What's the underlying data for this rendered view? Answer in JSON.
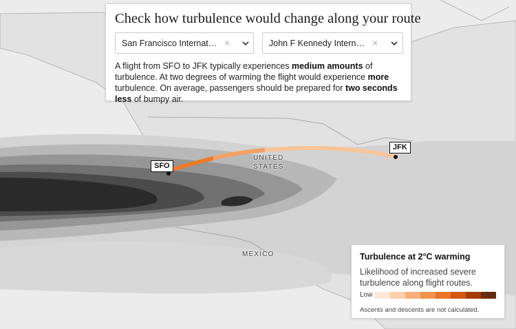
{
  "panel": {
    "title": "Check how turbulence would change along your route",
    "origin": {
      "value": "San Francisco Internat…"
    },
    "destination": {
      "value": "John F Kennedy Intern…"
    },
    "description": {
      "p1": "A flight from SFO to JFK typically experiences ",
      "b1": "medium amounts",
      "p2": " of turbulence. At two degrees of warming the flight would experience ",
      "b2": "more",
      "p3": " turbulence. On average, passengers should be prepared for ",
      "b3": "two seconds less",
      "p4": " of bumpy air."
    }
  },
  "icons": {
    "clear": "×",
    "dropdown": "chevron-down-icon"
  },
  "map": {
    "route": {
      "origin_code": "SFO",
      "destination_code": "JFK"
    },
    "labels": {
      "country_1": "UNITED",
      "country_1b": "STATES",
      "country_2": "MEXICO"
    }
  },
  "legend": {
    "title": "Turbulence at 2°C warming",
    "subtitle": "Likelihood of increased severe turbulence along flight routes.",
    "low": "Low",
    "high": "High",
    "note": "Ascents and descents are not calculated.",
    "colors": [
      "#fde8d7",
      "#fbcfaa",
      "#f8b07a",
      "#f3924d",
      "#e9752a",
      "#d2570f",
      "#a63b05",
      "#7a2a03"
    ]
  },
  "colors": {
    "land": "#e4e4e4",
    "route_low": "#f8c49a",
    "route_mid": "#f2a064",
    "route_high": "#ec7b2c",
    "band_colors": [
      "#cfcfcf",
      "#b3b3b3",
      "#919191",
      "#6c6c6c",
      "#484848",
      "#2b2b2b"
    ]
  }
}
